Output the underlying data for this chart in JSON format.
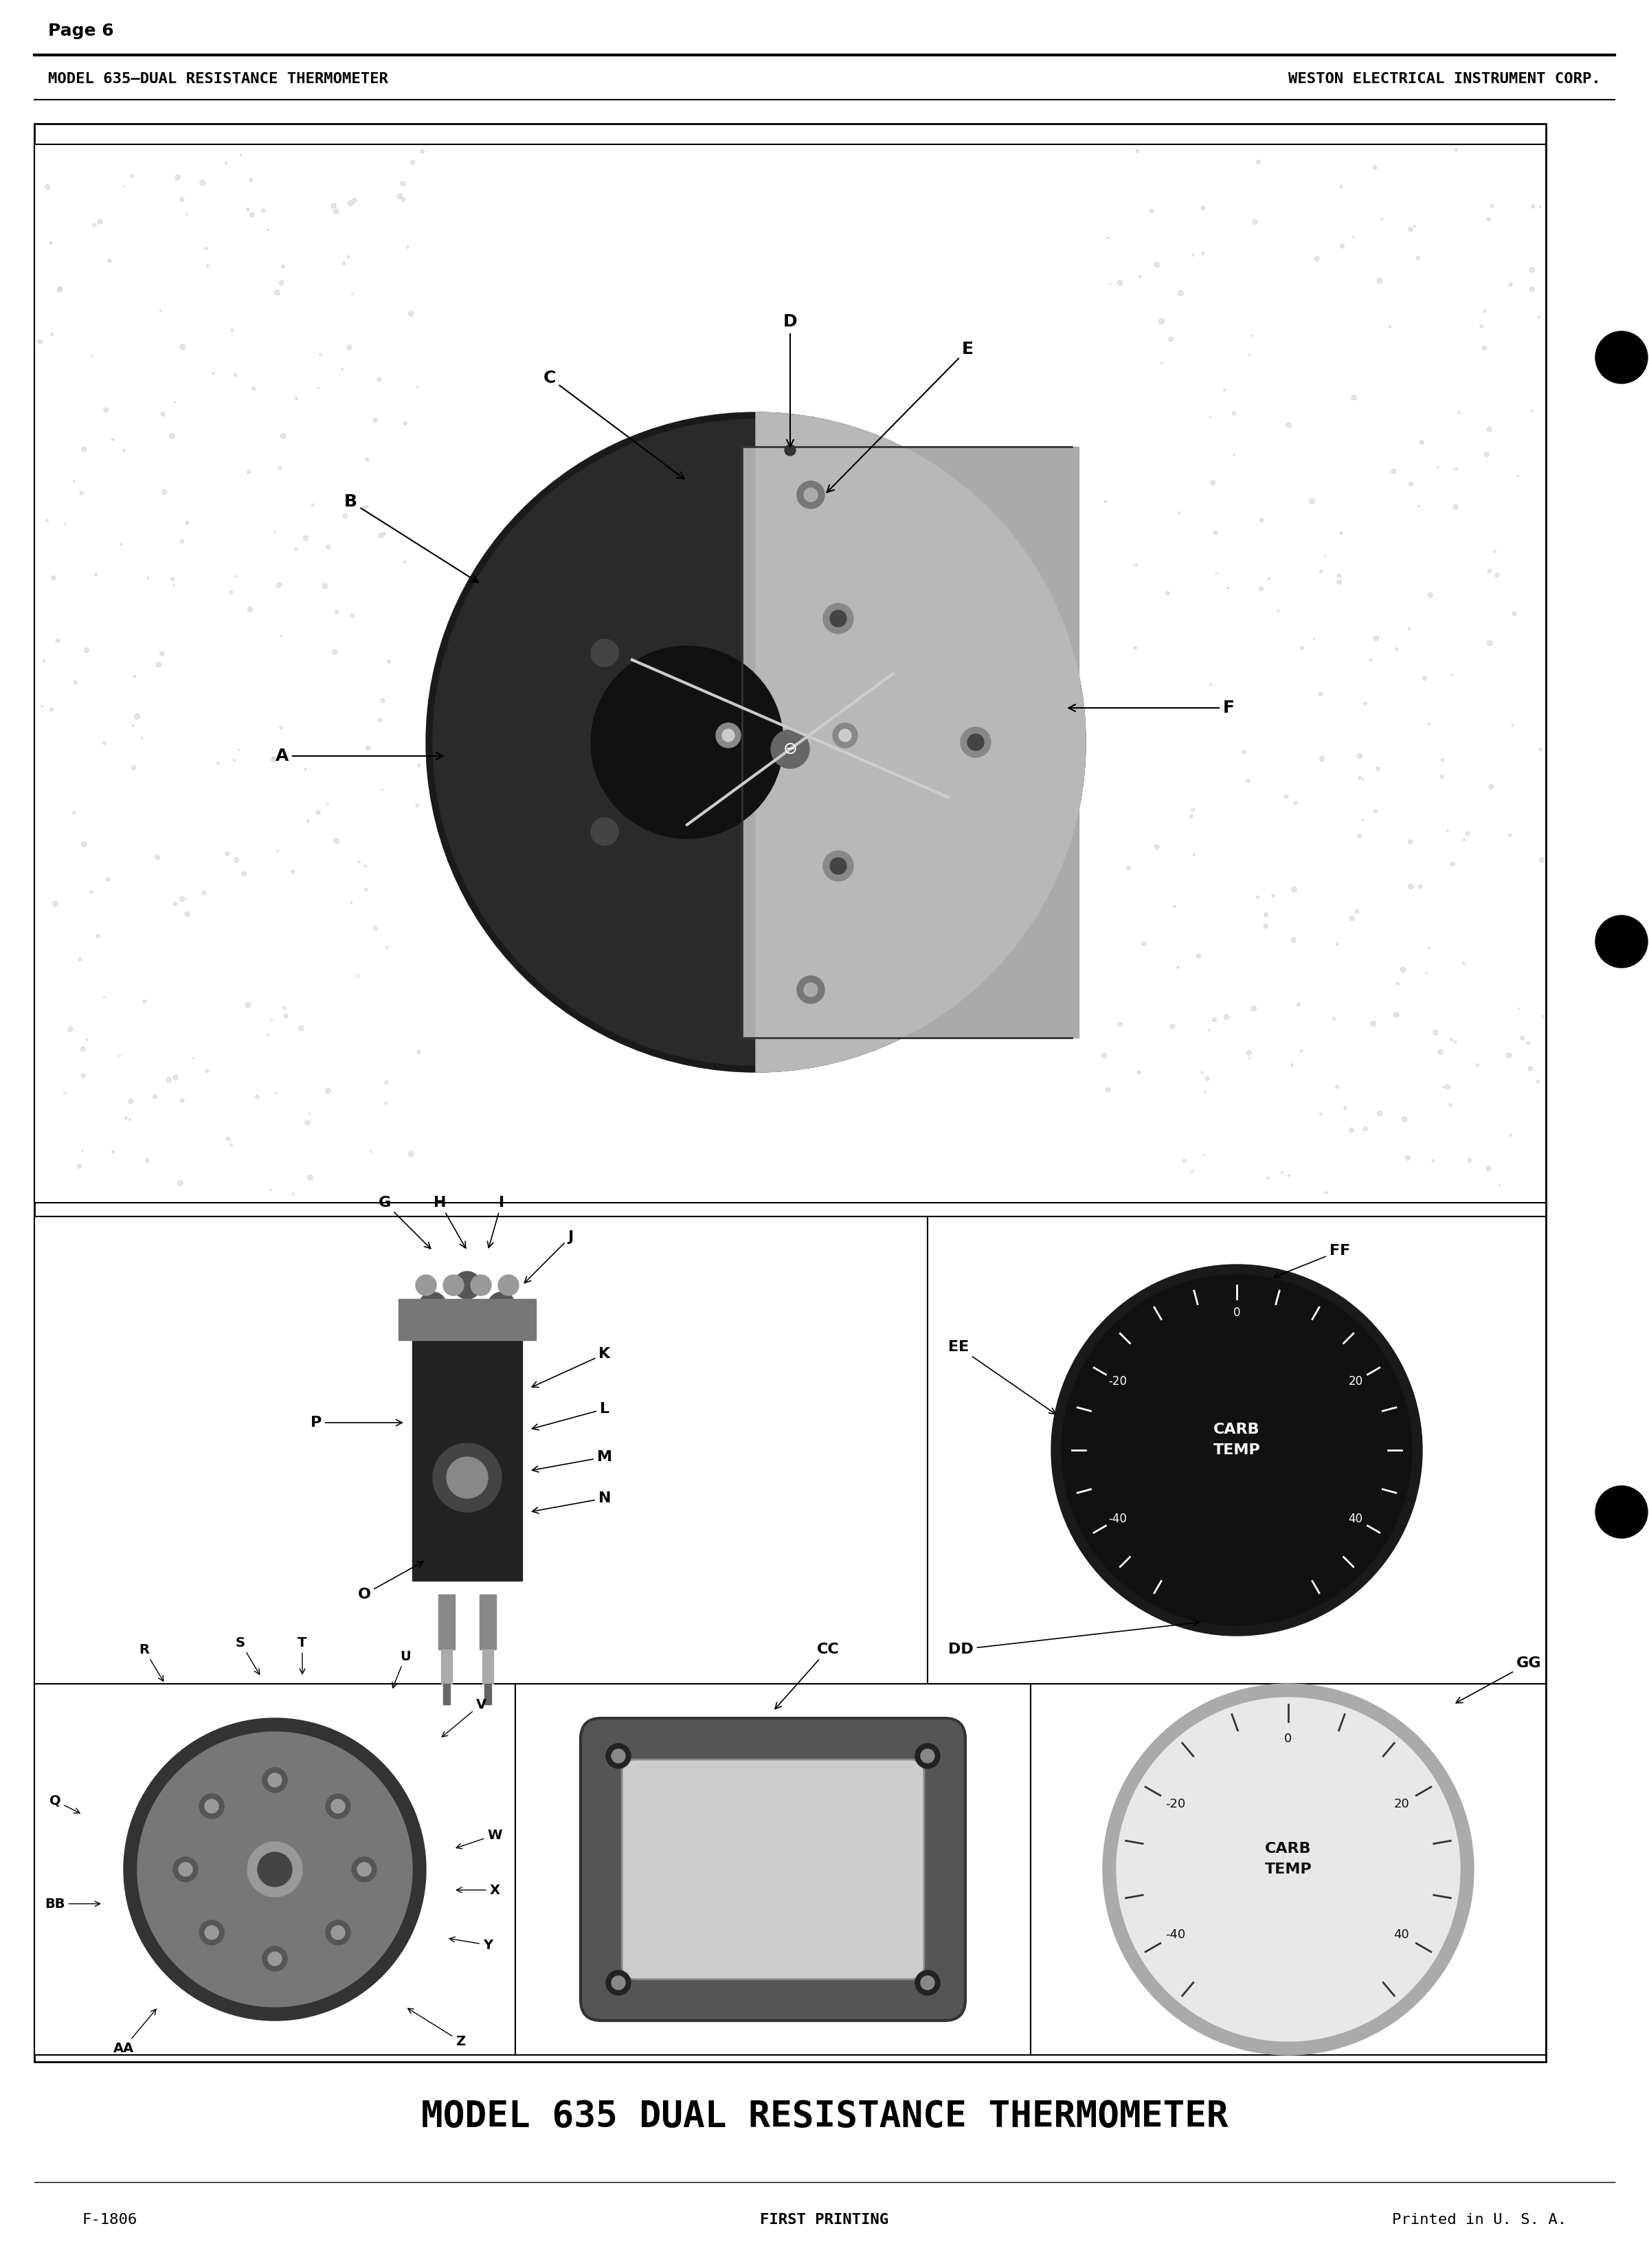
{
  "page_number": "Page 6",
  "header_left": "MODEL 635—DUAL RESISTANCE THERMOMETER",
  "header_right": "WESTON ELECTRICAL INSTRUMENT CORP.",
  "title": "MODEL 635 DUAL RESISTANCE THERMOMETER",
  "footer_left": "F-1806",
  "footer_center": "FIRST PRINTING",
  "footer_right": "Printed in U. S. A.",
  "bg_color": "#f0ede8",
  "page_bg": "#ffffff",
  "border_color": "#000000",
  "text_color": "#000000",
  "diagram_labels_top": [
    "A",
    "B",
    "C",
    "D",
    "E",
    "F"
  ],
  "diagram_labels_mid": [
    "G",
    "H",
    "I",
    "J",
    "K",
    "L",
    "M",
    "N",
    "O",
    "P",
    "EE",
    "FF",
    "DD"
  ],
  "diagram_labels_bot": [
    "Q",
    "R",
    "S",
    "T",
    "U",
    "V",
    "W",
    "X",
    "Y",
    "Z",
    "AA",
    "BB",
    "CC",
    "GG"
  ]
}
